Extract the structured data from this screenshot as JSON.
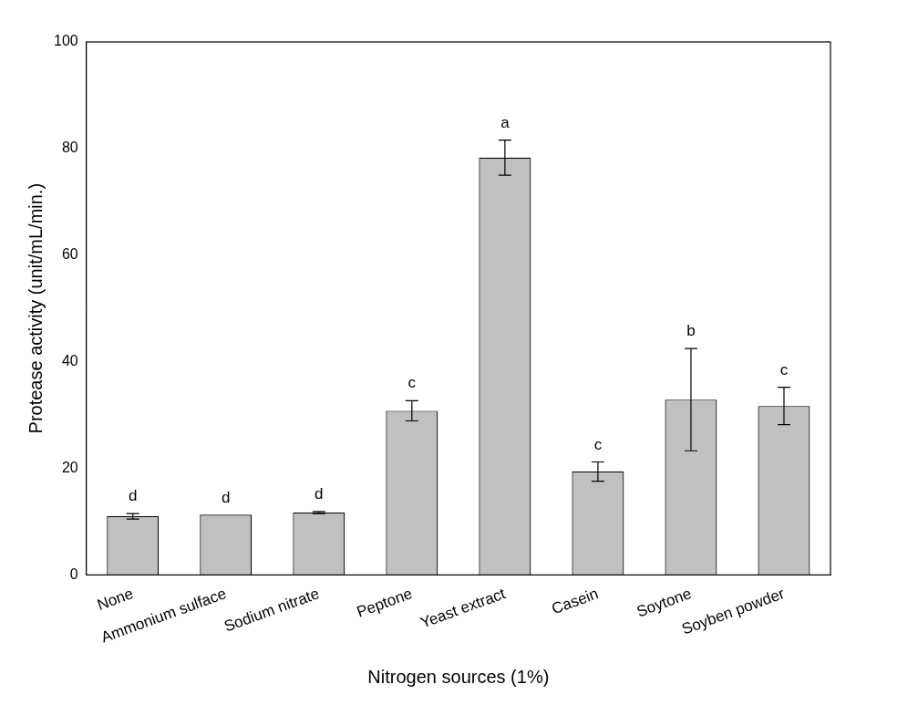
{
  "chart_data": {
    "type": "bar",
    "x_label": "Nitrogen sources (1%)",
    "y_label": "Protease activity (unit/mL/min.)",
    "categories": [
      "None",
      "Ammonium sulface",
      "Sodium nitrate",
      "Peptone",
      "Yeast extract",
      "Casein",
      "Soytone",
      "Soyben powder"
    ],
    "values": [
      11,
      11.3,
      11.7,
      30.8,
      78.3,
      19.4,
      32.9,
      31.7
    ],
    "errors": [
      0.5,
      0,
      0.2,
      1.9,
      3.3,
      1.8,
      9.6,
      3.5
    ],
    "annotations": [
      "d",
      "d",
      "d",
      "c",
      "a",
      "c",
      "b",
      "c"
    ],
    "color": "#c0c0c0",
    "ylim": [
      0,
      100
    ],
    "yticks": [
      0,
      20,
      40,
      60,
      80,
      100
    ],
    "grid": false
  }
}
